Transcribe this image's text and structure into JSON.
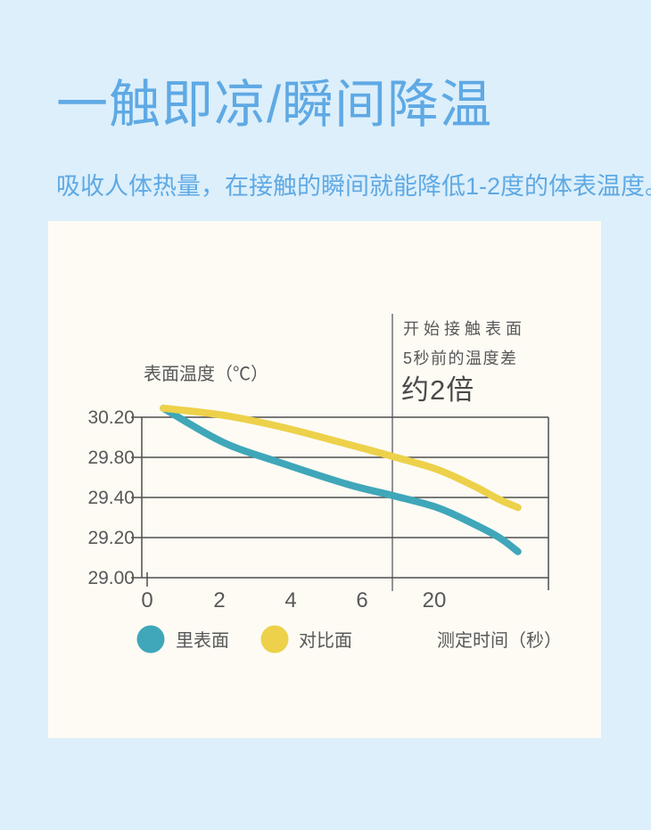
{
  "header": {
    "title": "一触即凉/瞬间降温",
    "subtitle": "吸收人体热量，在接触的瞬间就能降低1-2度的体表温度。"
  },
  "colors": {
    "page_bg": "#DCEFFB",
    "card_bg": "#FDFBF4",
    "accent_blue": "#5FA9E4",
    "axis_gray": "#4E4E4E",
    "label_gray": "#585858"
  },
  "chart_data": {
    "type": "line",
    "y_axis_title": "表面温度（℃）",
    "x_axis_title": "测定时间（秒）",
    "y_tick_labels": [
      "30.20",
      "29.80",
      "29.40",
      "29.20",
      "29.00"
    ],
    "x_tick_labels": [
      "0",
      "2",
      "4",
      "6",
      "20"
    ],
    "y_scale_note": "gridlines equally spaced, label steps 0.4/0.4/0.2/0.2",
    "annotation": {
      "line1": "开始接触表面",
      "line2": "5秒前的温度差",
      "line3": "约2倍"
    },
    "legend_position": "bottom",
    "grid": true,
    "series": [
      {
        "name": "里表面",
        "color": "#3FA7B9",
        "points": [
          [
            0.053,
            30.29
          ],
          [
            0.2,
            29.95
          ],
          [
            0.346,
            29.74
          ],
          [
            0.507,
            29.53
          ],
          [
            0.616,
            29.42
          ],
          [
            0.726,
            29.35
          ],
          [
            0.814,
            29.27
          ],
          [
            0.879,
            29.2
          ],
          [
            0.925,
            29.13
          ]
        ]
      },
      {
        "name": "对比面",
        "color": "#EDD14A",
        "points": [
          [
            0.053,
            30.29
          ],
          [
            0.2,
            30.22
          ],
          [
            0.346,
            30.1
          ],
          [
            0.507,
            29.93
          ],
          [
            0.616,
            29.81
          ],
          [
            0.726,
            29.68
          ],
          [
            0.814,
            29.52
          ],
          [
            0.879,
            29.39
          ],
          [
            0.925,
            29.35
          ]
        ]
      }
    ]
  }
}
